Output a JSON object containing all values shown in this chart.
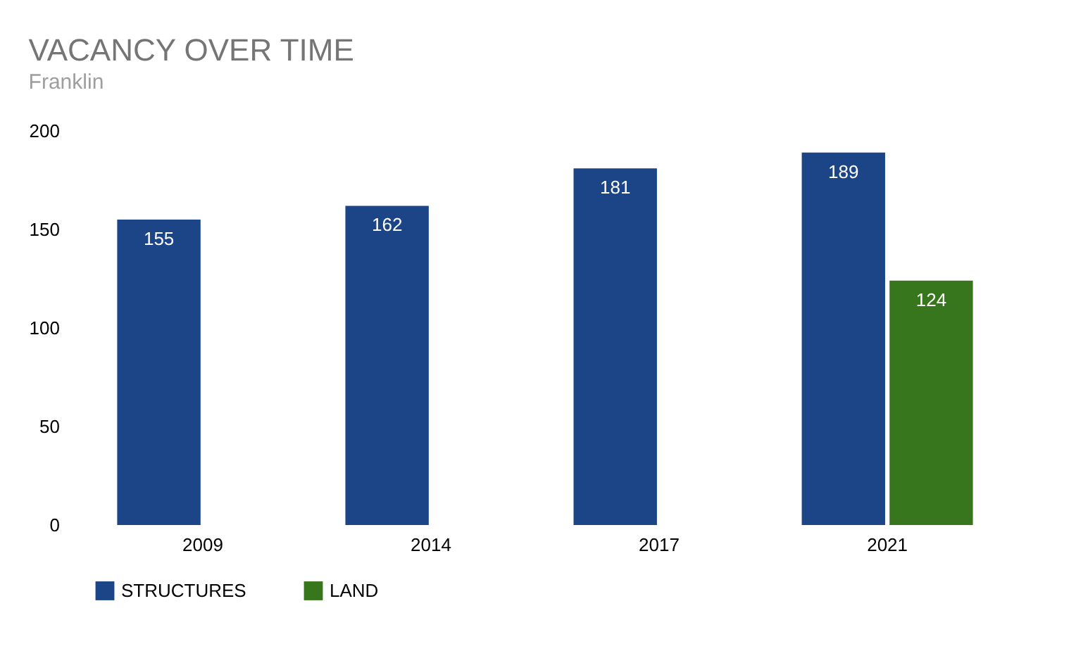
{
  "chart_data": {
    "type": "bar",
    "title": "VACANCY OVER TIME",
    "subtitle": "Franklin",
    "categories": [
      "2009",
      "2014",
      "2017",
      "2021"
    ],
    "series": [
      {
        "name": "STRUCTURES",
        "color": "#1c4587",
        "values": [
          155,
          162,
          181,
          189
        ]
      },
      {
        "name": "LAND",
        "color": "#38761d",
        "values": [
          null,
          null,
          null,
          124
        ]
      }
    ],
    "ylim": [
      0,
      200
    ],
    "yticks": [
      0,
      50,
      100,
      150,
      200
    ],
    "grid": false,
    "legend": "bottom",
    "data_labels": true
  }
}
